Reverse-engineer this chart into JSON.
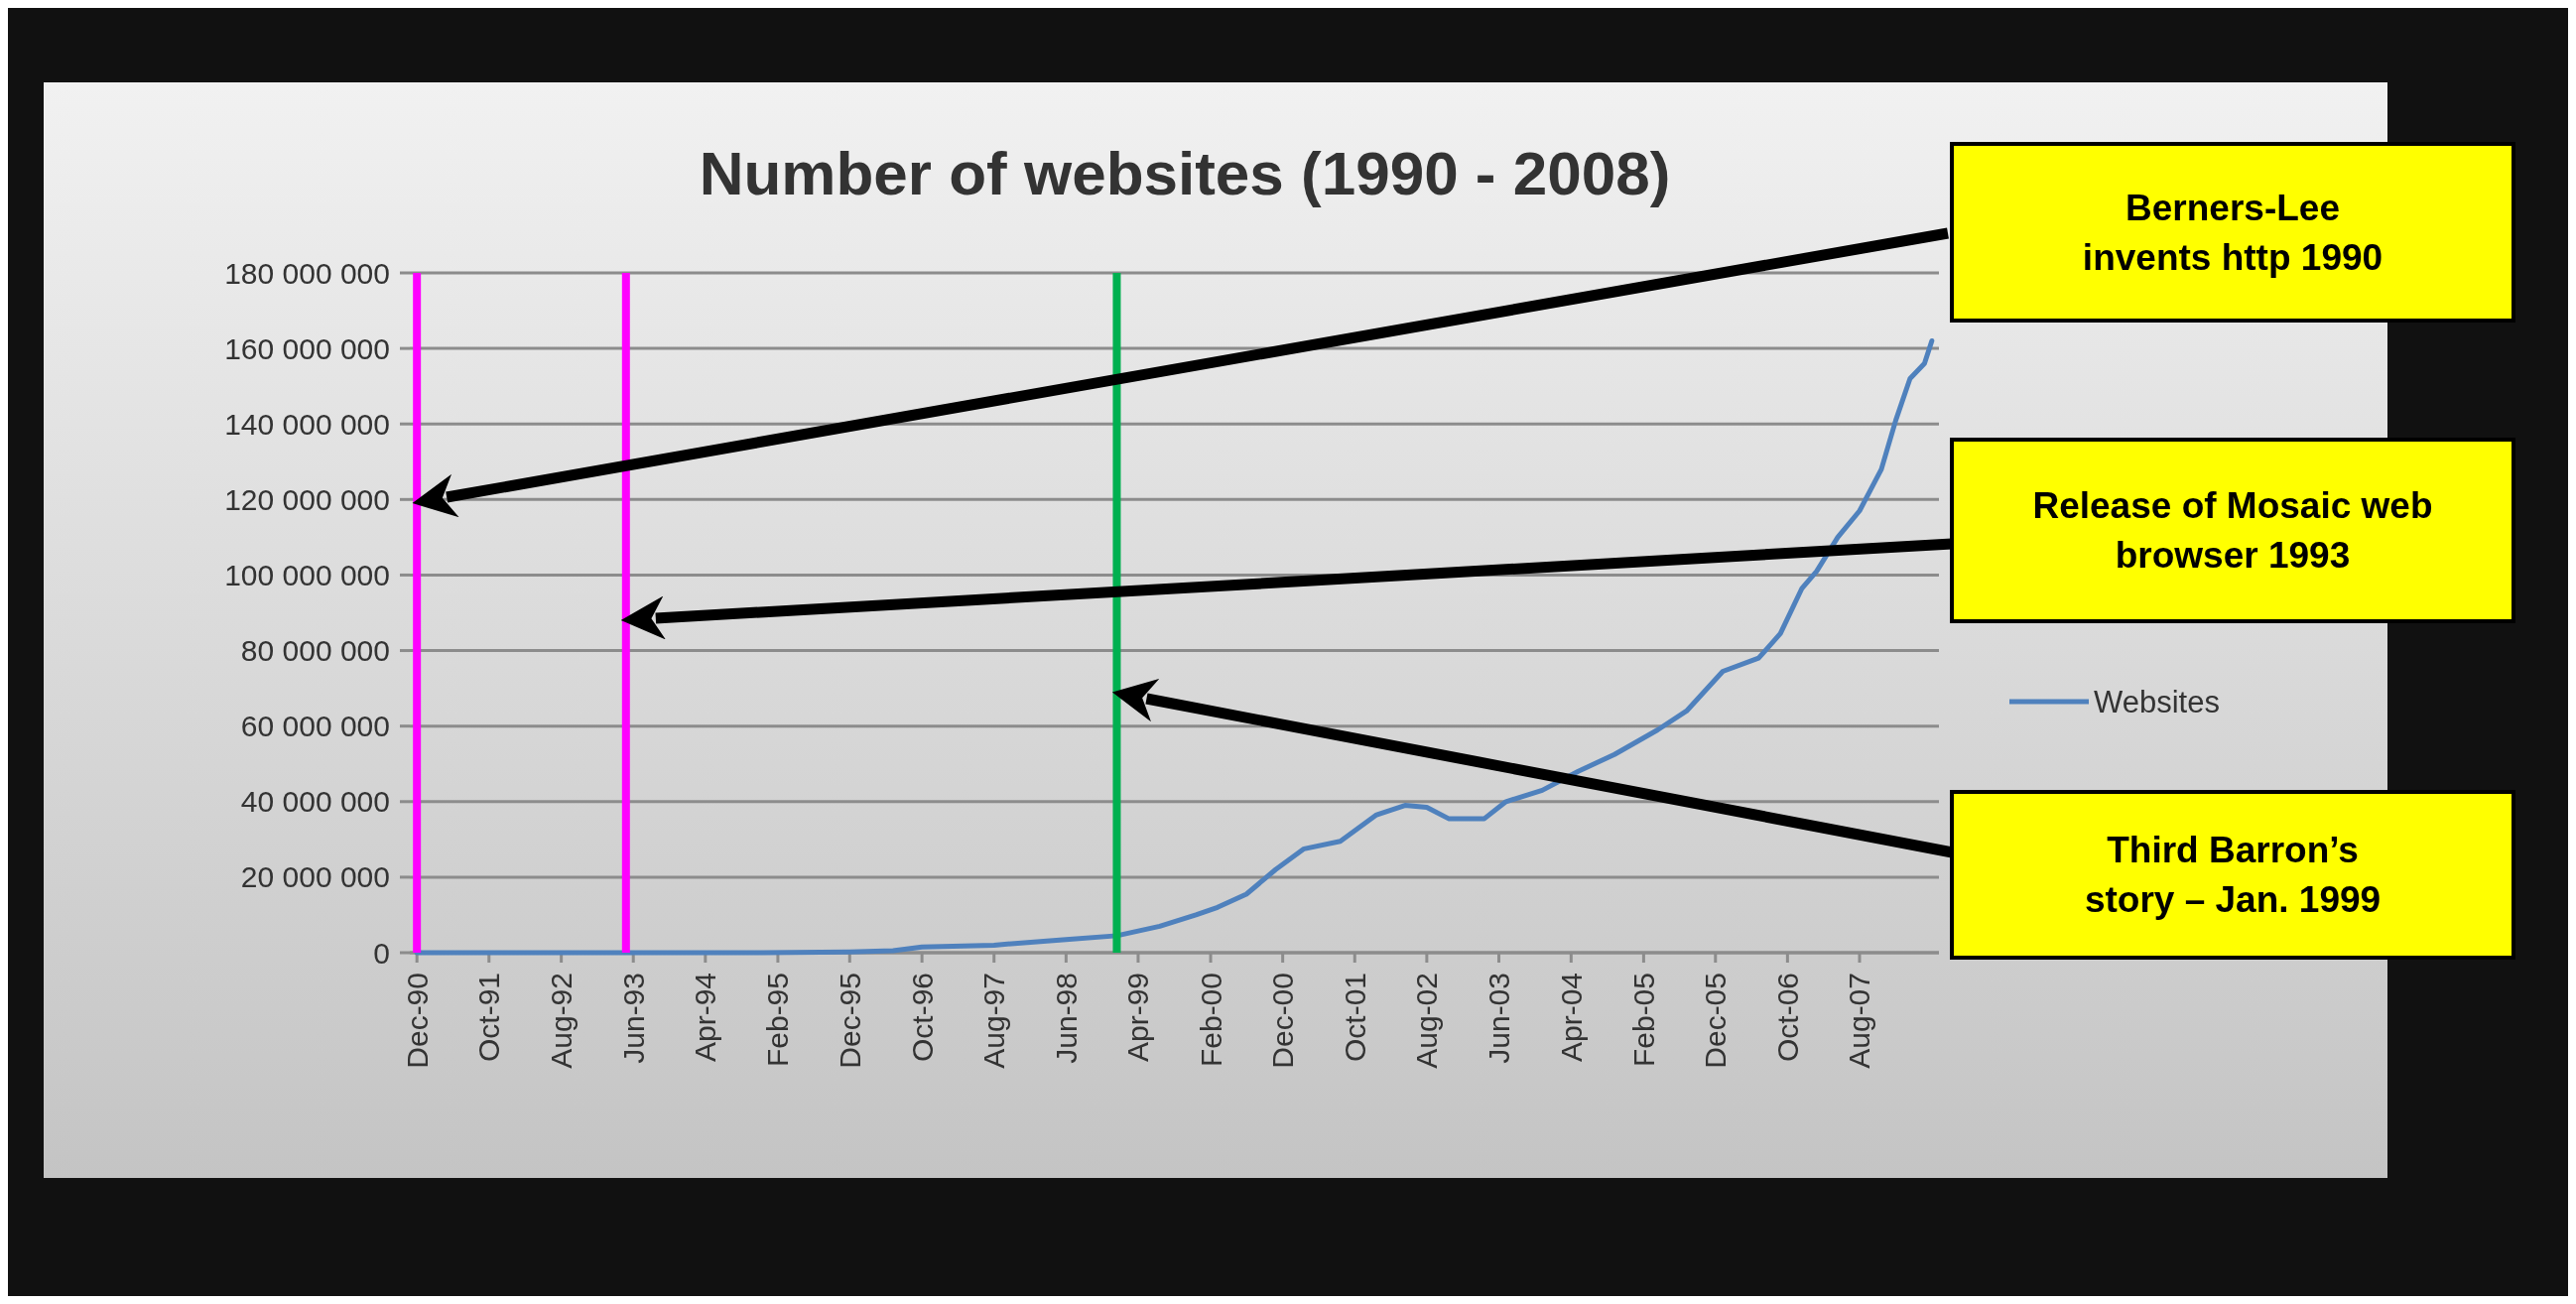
{
  "chart_data": {
    "type": "line",
    "title": "Number of websites (1990 - 2008)",
    "x": [
      "1990-12",
      "1992-12",
      "1994-12",
      "1995-12",
      "1996-06",
      "1996-10",
      "1997-08",
      "1998-06",
      "1999-01",
      "1999-07",
      "1999-12",
      "2000-03",
      "2000-07",
      "2000-11",
      "2001-03",
      "2001-08",
      "2002-01",
      "2002-05",
      "2002-08",
      "2002-11",
      "2003-04",
      "2003-07",
      "2003-12",
      "2004-05",
      "2004-10",
      "2005-04",
      "2005-08",
      "2006-01",
      "2006-06",
      "2006-09",
      "2006-12",
      "2007-02",
      "2007-05",
      "2007-08",
      "2007-11",
      "2008-01",
      "2008-03",
      "2008-05",
      "2008-06"
    ],
    "series": [
      {
        "name": "Websites",
        "color": "#4f81bd",
        "values": [
          0,
          0,
          0,
          200000,
          500000,
          1500000,
          2000000,
          3500000,
          4500000,
          7000000,
          10000000,
          12000000,
          15500000,
          22000000,
          27500000,
          29500000,
          36500000,
          39000000,
          38500000,
          35500000,
          35500000,
          40000000,
          43000000,
          48000000,
          52500000,
          59000000,
          64000000,
          74500000,
          78000000,
          84500000,
          96500000,
          101000000,
          110000000,
          117000000,
          128000000,
          141000000,
          152000000,
          156000000,
          162000000
        ]
      }
    ],
    "xlim": [
      "1990-11",
      "2008-07"
    ],
    "xticks": [
      {
        "value": "1990-12",
        "label": "Dec-90"
      },
      {
        "value": "1991-10",
        "label": "Oct-91"
      },
      {
        "value": "1992-08",
        "label": "Aug-92"
      },
      {
        "value": "1993-06",
        "label": "Jun-93"
      },
      {
        "value": "1994-04",
        "label": "Apr-94"
      },
      {
        "value": "1995-02",
        "label": "Feb-95"
      },
      {
        "value": "1995-12",
        "label": "Dec-95"
      },
      {
        "value": "1996-10",
        "label": "Oct-96"
      },
      {
        "value": "1997-08",
        "label": "Aug-97"
      },
      {
        "value": "1998-06",
        "label": "Jun-98"
      },
      {
        "value": "1999-04",
        "label": "Apr-99"
      },
      {
        "value": "2000-02",
        "label": "Feb-00"
      },
      {
        "value": "2000-12",
        "label": "Dec-00"
      },
      {
        "value": "2001-10",
        "label": "Oct-01"
      },
      {
        "value": "2002-08",
        "label": "Aug-02"
      },
      {
        "value": "2003-06",
        "label": "Jun-03"
      },
      {
        "value": "2004-04",
        "label": "Apr-04"
      },
      {
        "value": "2005-02",
        "label": "Feb-05"
      },
      {
        "value": "2005-12",
        "label": "Dec-05"
      },
      {
        "value": "2006-10",
        "label": "Oct-06"
      },
      {
        "value": "2007-08",
        "label": "Aug-07"
      }
    ],
    "ylim": [
      0,
      180000000
    ],
    "yticks": [
      {
        "value": 0,
        "label": "0"
      },
      {
        "value": 20000000,
        "label": "20 000 000"
      },
      {
        "value": 40000000,
        "label": "40 000 000"
      },
      {
        "value": 60000000,
        "label": "60 000 000"
      },
      {
        "value": 80000000,
        "label": "80 000 000"
      },
      {
        "value": 100000000,
        "label": "100 000 000"
      },
      {
        "value": 120000000,
        "label": "120 000 000"
      },
      {
        "value": 140000000,
        "label": "140 000 000"
      },
      {
        "value": 160000000,
        "label": "160 000 000"
      },
      {
        "value": 180000000,
        "label": "180 000 000"
      }
    ],
    "grid": "y",
    "legend": "right",
    "marker": "none",
    "line_style": "solid",
    "ref_lines": [
      {
        "axis": "x",
        "value": "1990-12",
        "color": "#ff00ff"
      },
      {
        "axis": "x",
        "value": "1993-05",
        "color": "#ff00ff"
      },
      {
        "axis": "x",
        "value": "1999-01",
        "color": "#00b050"
      }
    ],
    "annotations": [
      "Berners-Lee\ninvents http 1990",
      "Release of Mosaic web\nbrowser 1993",
      "Third Barron’s\nstory – Jan. 1999"
    ]
  }
}
